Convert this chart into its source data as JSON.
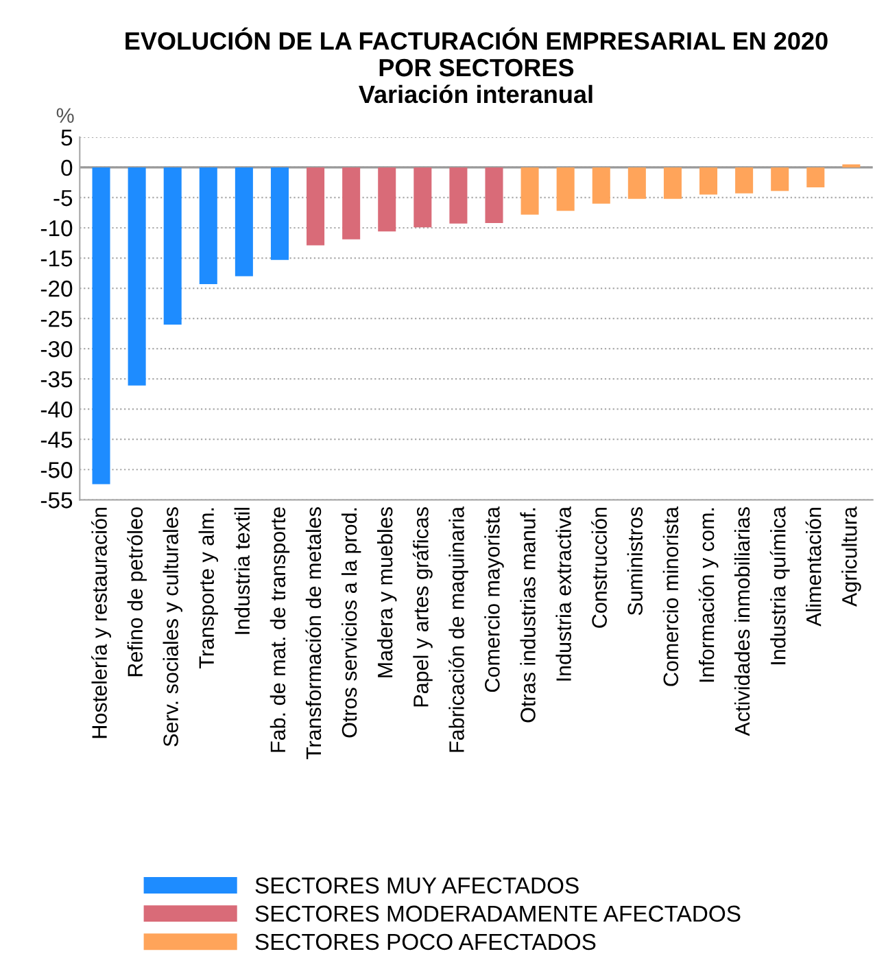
{
  "chart_data": {
    "type": "bar",
    "title": "EVOLUCIÓN DE LA FACTURACIÓN EMPRESARIAL EN 2020\nPOR SECTORES",
    "subtitle": "Variación interanual",
    "ylabel": "%",
    "categories": [
      "Hostelería y restauración",
      "Refino de petróleo",
      "Serv. sociales y culturales",
      "Transporte y alm.",
      "Industria textil",
      "Fab. de mat. de transporte",
      "Transformación de metales",
      "Otros servicios a la prod.",
      "Madera y muebles",
      "Papel y artes gráficas",
      "Fabricación de maquinaria",
      "Comercio mayorista",
      "Otras industrias manuf.",
      "Industria extractiva",
      "Construcción",
      "Suministros",
      "Comercio minorista",
      "Información y com.",
      "Actividades inmobiliarias",
      "Industria química",
      "Alimentación",
      "Agricultura"
    ],
    "series": [
      {
        "name": "SECTORES MUY AFECTADOS",
        "color": "#1e8cff",
        "values": [
          -52.4,
          -36.1,
          -26.0,
          -19.3,
          -18.0,
          -15.3,
          null,
          null,
          null,
          null,
          null,
          null,
          null,
          null,
          null,
          null,
          null,
          null,
          null,
          null,
          null,
          null
        ]
      },
      {
        "name": "SECTORES MODERADAMENTE AFECTADOS",
        "color": "#d96b78",
        "values": [
          null,
          null,
          null,
          null,
          null,
          null,
          -12.9,
          -11.9,
          -10.6,
          -9.9,
          -9.3,
          -9.2,
          null,
          null,
          null,
          null,
          null,
          null,
          null,
          null,
          null,
          null
        ]
      },
      {
        "name": "SECTORES POCO AFECTADOS",
        "color": "#ffa45a",
        "values": [
          null,
          null,
          null,
          null,
          null,
          null,
          null,
          null,
          null,
          null,
          null,
          null,
          -7.8,
          -7.2,
          -6.0,
          -5.2,
          -5.2,
          -4.5,
          -4.3,
          -3.9,
          -3.3,
          0.5
        ]
      }
    ],
    "ylim": [
      -55,
      5
    ],
    "yticks": [
      5,
      0,
      -5,
      -10,
      -15,
      -20,
      -25,
      -30,
      -35,
      -40,
      -45,
      -50,
      -55
    ],
    "grid": "y",
    "legend": "bottom"
  }
}
